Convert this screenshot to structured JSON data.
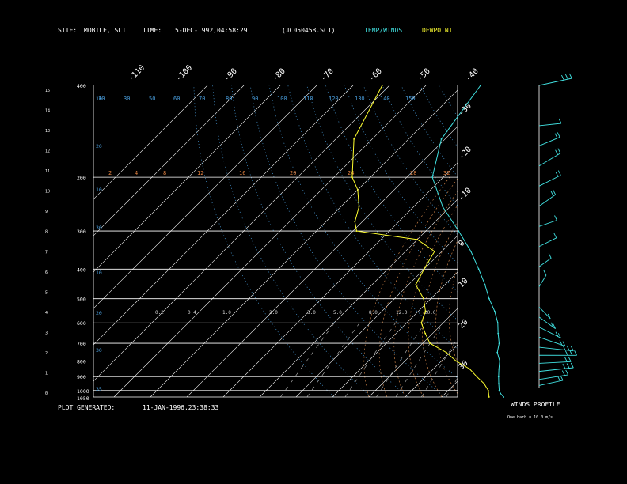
{
  "header": {
    "site_label": "SITE:",
    "site_value": "MOBILE, SC1",
    "time_label": "TIME:",
    "time_value": "5-DEC-1992,04:58:29",
    "file_value": "(JC050458.SC1)",
    "temp_label": "TEMP/WINDS",
    "dew_label": "DEWPOINT"
  },
  "footer": {
    "generated_label": "PLOT GENERATED:",
    "generated_value": "11-JAN-1996,23:38:33"
  },
  "winds_panel": {
    "title": "WINDS PROFILE",
    "caption": "One barb = 10.0 m/s"
  },
  "colors": {
    "temperature": "#40e0e0",
    "dewpoint": "#ffff30",
    "isobar": "#ffffff",
    "mixing_ratio": "#e08040",
    "dry_adiabat": "#4aa0e0",
    "moist_adiabat": "#e09050",
    "background": "#000000"
  },
  "chart_data": {
    "type": "line",
    "subtype": "skew-T log-P sounding",
    "pressure_levels": [
      400,
      200,
      300,
      400,
      500,
      600,
      700,
      800,
      900,
      1000,
      1050
    ],
    "pressure_labels": [
      "400",
      "200",
      "300",
      "400",
      "500",
      "600",
      "700",
      "800",
      "900",
      "1000",
      "1050"
    ],
    "height_labels": [
      "0",
      "1",
      "2",
      "3",
      "4",
      "5",
      "6",
      "7",
      "8",
      "9",
      "10",
      "11",
      "12",
      "13",
      "14",
      "15"
    ],
    "top_temperature_labels": [
      "-110",
      "-100",
      "-90",
      "-80",
      "-70",
      "-60",
      "-50",
      "-40"
    ],
    "right_temperature_labels": [
      "-30",
      "-20",
      "-10",
      "0",
      "10",
      "20",
      "30"
    ],
    "dry_adiabat_labels": [
      "10",
      "30",
      "50",
      "60",
      "70",
      "80",
      "90",
      "100",
      "110",
      "120",
      "130",
      "140",
      "150"
    ],
    "mixing_ratio_labels": [
      "2",
      "4",
      "8",
      "12",
      "16",
      "20",
      "24",
      "28",
      "32"
    ],
    "mixing_ratio_labels_low": [
      "0.2",
      "0.4",
      "1.0",
      "2.0",
      "3.0",
      "5.0",
      "8.0",
      "12.0",
      "20.0"
    ],
    "left_theta_labels": [
      "10",
      "20",
      "10",
      "30",
      "10",
      "20",
      "30",
      "35"
    ],
    "series": [
      {
        "name": "TEMP/WINDS",
        "pressure": [
          1050,
          1020,
          1000,
          950,
          900,
          850,
          800,
          750,
          700,
          650,
          600,
          550,
          500,
          450,
          400,
          350,
          300,
          250,
          200,
          150,
          100
        ],
        "temperature_c": [
          27,
          25,
          24,
          22,
          20,
          18,
          16,
          13,
          11,
          8,
          5,
          1,
          -4,
          -9,
          -15,
          -22,
          -31,
          -42,
          -53,
          -61,
          -65
        ]
      },
      {
        "name": "DEWPOINT",
        "pressure": [
          1050,
          1000,
          950,
          900,
          850,
          800,
          750,
          700,
          650,
          600,
          550,
          500,
          450,
          400,
          350,
          320,
          300,
          280,
          250,
          220,
          200,
          150,
          100
        ],
        "temperature_c": [
          23,
          21,
          18,
          14,
          10,
          4,
          -1,
          -8,
          -12,
          -16,
          -18,
          -22,
          -28,
          -30,
          -32,
          -40,
          -59,
          -62,
          -65,
          -70,
          -75,
          -85,
          -92
        ]
      }
    ],
    "winds": [
      {
        "height_km": 0.1,
        "dir": 250,
        "speed": 15
      },
      {
        "height_km": 0.4,
        "dir": 255,
        "speed": 20
      },
      {
        "height_km": 0.8,
        "dir": 260,
        "speed": 25
      },
      {
        "height_km": 1.2,
        "dir": 265,
        "speed": 22
      },
      {
        "height_km": 1.6,
        "dir": 270,
        "speed": 28
      },
      {
        "height_km": 2.0,
        "dir": 280,
        "speed": 25
      },
      {
        "height_km": 2.5,
        "dir": 300,
        "speed": 20
      },
      {
        "height_km": 3.0,
        "dir": 310,
        "speed": 18
      },
      {
        "height_km": 3.5,
        "dir": 320,
        "speed": 15
      },
      {
        "height_km": 4.0,
        "dir": 330,
        "speed": 12
      },
      {
        "height_km": 5.0,
        "dir": 200,
        "speed": 10
      },
      {
        "height_km": 6.0,
        "dir": 220,
        "speed": 8
      },
      {
        "height_km": 7.0,
        "dir": 230,
        "speed": 12
      },
      {
        "height_km": 8.0,
        "dir": 240,
        "speed": 10
      },
      {
        "height_km": 9.0,
        "dir": 220,
        "speed": 15
      },
      {
        "height_km": 10.0,
        "dir": 230,
        "speed": 18
      },
      {
        "height_km": 11.0,
        "dir": 225,
        "speed": 20
      },
      {
        "height_km": 12.0,
        "dir": 235,
        "speed": 15
      },
      {
        "height_km": 13.0,
        "dir": 260,
        "speed": 12
      },
      {
        "height_km": 15.0,
        "dir": 250,
        "speed": 25
      }
    ]
  }
}
